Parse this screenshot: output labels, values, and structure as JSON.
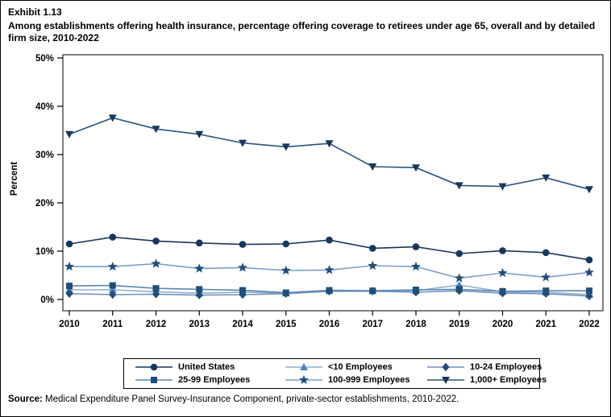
{
  "exhibit": {
    "number": "Exhibit 1.13",
    "title": "Among establishments offering health insurance, percentage offering coverage to retirees under age 65, overall and by detailed firm size, 2010-2022",
    "source_label": "Source:",
    "source_text": " Medical Expenditure Panel Survey-Insurance Component, private-sector establishments, 2010-2022."
  },
  "chart_data": {
    "type": "line",
    "title": "Exhibit 1.13",
    "subtitle": "Among establishments offering health insurance, percentage offering coverage to retirees under age 65, overall and by detailed firm size, 2010-2022",
    "xlabel": "",
    "ylabel": "Percent",
    "x": [
      2010,
      2011,
      2012,
      2013,
      2014,
      2015,
      2016,
      2017,
      2018,
      2019,
      2020,
      2021,
      2022
    ],
    "ylim": [
      0,
      50
    ],
    "ytick_step": 10,
    "ytick_suffix": "%",
    "grid": false,
    "legend_position": "bottom-box",
    "series": [
      {
        "name": "United States",
        "marker": "circle",
        "line_color": "#17375e",
        "marker_color": "#17375e",
        "values": [
          11.5,
          12.9,
          12.1,
          11.7,
          11.4,
          11.5,
          12.3,
          10.6,
          10.9,
          9.5,
          10.1,
          9.7,
          8.2
        ]
      },
      {
        "name": "<10 Employees",
        "marker": "triangle-up",
        "line_color": "#8faccf",
        "marker_color": "#4f81bd",
        "values": [
          2.0,
          2.0,
          1.6,
          1.3,
          1.5,
          1.3,
          1.8,
          1.8,
          1.8,
          3.0,
          1.6,
          1.5,
          1.0
        ]
      },
      {
        "name": "10-24 Employees",
        "marker": "diamond",
        "line_color": "#7094bd",
        "marker_color": "#1f4e79",
        "values": [
          1.2,
          1.0,
          1.1,
          0.9,
          1.0,
          1.2,
          1.7,
          1.7,
          1.5,
          1.8,
          1.3,
          1.2,
          0.7
        ]
      },
      {
        "name": "25-99 Employees",
        "marker": "square",
        "line_color": "#5b87b5",
        "marker_color": "#1f4e79",
        "values": [
          2.8,
          2.9,
          2.3,
          2.1,
          1.9,
          1.4,
          1.9,
          1.8,
          2.0,
          2.1,
          1.7,
          1.8,
          1.8
        ]
      },
      {
        "name": "100-999 Employees",
        "marker": "star",
        "line_color": "#7ba0c9",
        "marker_color": "#1f4e79",
        "values": [
          6.8,
          6.8,
          7.4,
          6.4,
          6.6,
          6.0,
          6.1,
          7.0,
          6.8,
          4.4,
          5.5,
          4.6,
          5.6
        ]
      },
      {
        "name": "1,000+ Employees",
        "marker": "triangle-down",
        "line_color": "#2a5380",
        "marker_color": "#17375e",
        "values": [
          34.2,
          37.6,
          35.3,
          34.2,
          32.4,
          31.6,
          32.3,
          27.5,
          27.3,
          23.6,
          23.4,
          25.2,
          22.8
        ]
      }
    ]
  }
}
